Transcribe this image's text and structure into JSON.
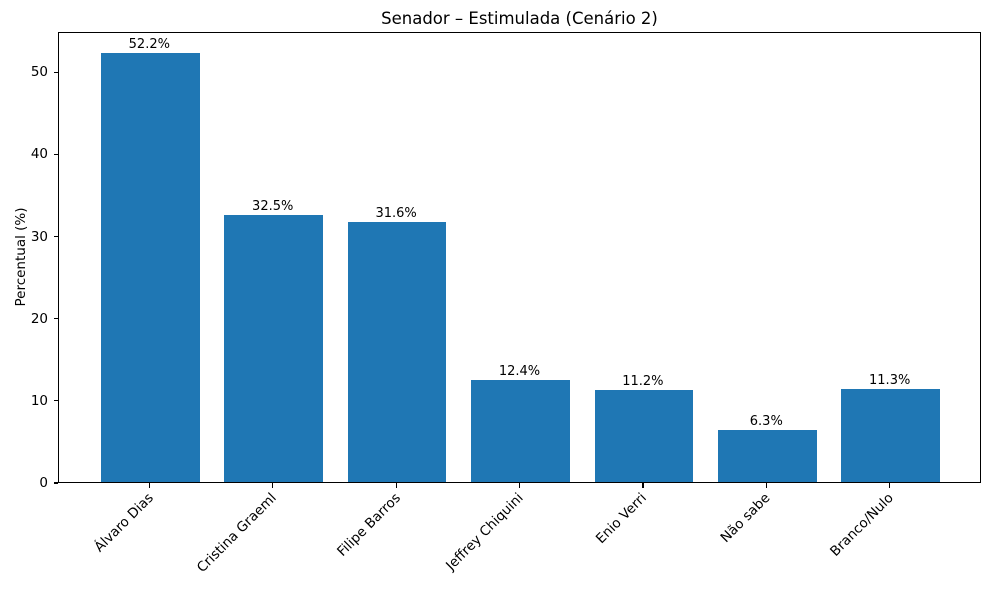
{
  "chart_data": {
    "type": "bar",
    "title": "Senador – Estimulada (Cenário 2)",
    "ylabel": "Percentual (%)",
    "xlabel": "",
    "categories": [
      "Álvaro Dias",
      "Cristina Graeml",
      "Filipe Barros",
      "Jeffrey Chiquini",
      "Enio Verri",
      "Não sabe",
      "Branco/Nulo"
    ],
    "values": [
      52.2,
      32.5,
      31.6,
      12.4,
      11.2,
      6.3,
      11.3
    ],
    "value_labels": [
      "52.2%",
      "32.5%",
      "31.6%",
      "12.4%",
      "11.2%",
      "6.3%",
      "11.3%"
    ],
    "yticks": [
      0,
      10,
      20,
      30,
      40,
      50
    ],
    "ytick_labels": [
      "0",
      "10",
      "20",
      "30",
      "40",
      "50"
    ],
    "ylim": [
      0,
      54.9
    ],
    "xlim": [
      -0.74,
      6.74
    ],
    "bar_width": 0.8,
    "bar_color": "#1f77b4",
    "grid": false,
    "legend": "none"
  }
}
